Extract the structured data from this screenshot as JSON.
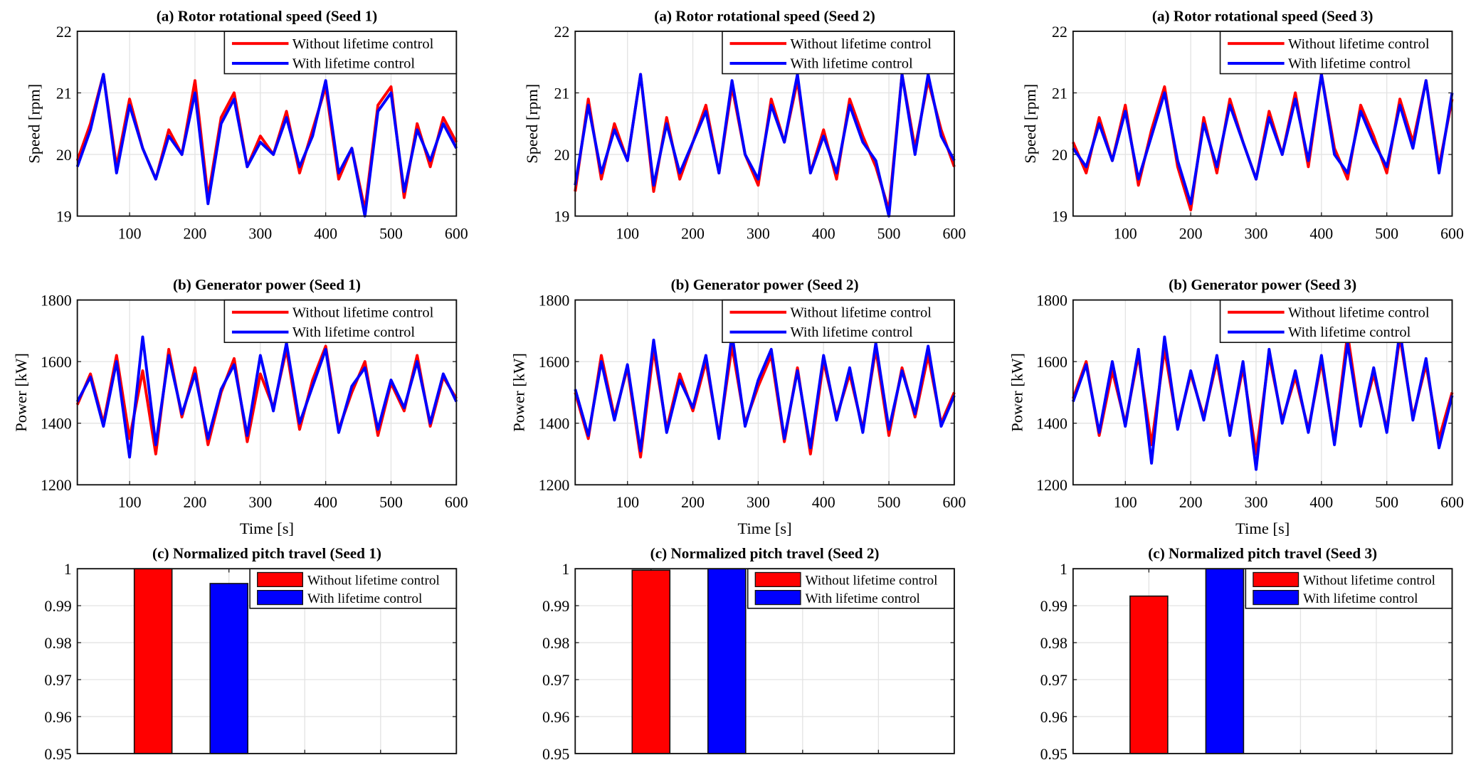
{
  "chart_data": [
    {
      "type": "line",
      "title": "(a) Rotor rotational speed (Seed 1)",
      "xlabel": "",
      "ylabel": "Speed [rpm]",
      "xlim": [
        20,
        600
      ],
      "ylim": [
        19,
        22
      ],
      "xticks": [
        "100",
        "200",
        "300",
        "400",
        "500",
        "600"
      ],
      "yticks": [
        "19",
        "20",
        "21",
        "22"
      ],
      "grid": true,
      "legend_position": "top-right",
      "x": [
        20,
        40,
        60,
        80,
        100,
        120,
        140,
        160,
        180,
        200,
        220,
        240,
        260,
        280,
        300,
        320,
        340,
        360,
        380,
        400,
        420,
        440,
        460,
        480,
        500,
        520,
        540,
        560,
        580,
        600
      ],
      "series": [
        {
          "name": "Without lifetime control",
          "color": "#ff0000",
          "values": [
            19.9,
            20.5,
            21.3,
            19.8,
            20.9,
            20.1,
            19.6,
            20.4,
            20.0,
            21.2,
            19.3,
            20.6,
            21.0,
            19.8,
            20.3,
            20.0,
            20.7,
            19.7,
            20.4,
            21.1,
            19.6,
            20.1,
            19.1,
            20.8,
            21.1,
            19.3,
            20.5,
            19.8,
            20.6,
            20.2
          ]
        },
        {
          "name": "With lifetime control",
          "color": "#0000ff",
          "values": [
            19.8,
            20.4,
            21.3,
            19.7,
            20.8,
            20.1,
            19.6,
            20.3,
            20.0,
            21.0,
            19.2,
            20.5,
            20.9,
            19.8,
            20.2,
            20.0,
            20.6,
            19.8,
            20.3,
            21.2,
            19.7,
            20.1,
            19.0,
            20.7,
            21.0,
            19.4,
            20.4,
            19.9,
            20.5,
            20.1
          ]
        }
      ]
    },
    {
      "type": "line",
      "title": "(a) Rotor rotational speed (Seed 2)",
      "xlabel": "",
      "ylabel": "Speed [rpm]",
      "xlim": [
        20,
        600
      ],
      "ylim": [
        19,
        22
      ],
      "xticks": [
        "100",
        "200",
        "300",
        "400",
        "500",
        "600"
      ],
      "yticks": [
        "19",
        "20",
        "21",
        "22"
      ],
      "grid": true,
      "legend_position": "top-right",
      "x": [
        20,
        40,
        60,
        80,
        100,
        120,
        140,
        160,
        180,
        200,
        220,
        240,
        260,
        280,
        300,
        320,
        340,
        360,
        380,
        400,
        420,
        440,
        460,
        480,
        500,
        520,
        540,
        560,
        580,
        600
      ],
      "series": [
        {
          "name": "Without lifetime control",
          "color": "#ff0000",
          "values": [
            19.4,
            20.9,
            19.6,
            20.5,
            19.9,
            21.3,
            19.4,
            20.6,
            19.6,
            20.2,
            20.8,
            19.7,
            21.1,
            20.0,
            19.5,
            20.9,
            20.2,
            21.2,
            19.7,
            20.4,
            19.6,
            20.9,
            20.3,
            19.8,
            19.1,
            21.3,
            20.1,
            21.2,
            20.4,
            19.8
          ]
        },
        {
          "name": "With lifetime control",
          "color": "#0000ff",
          "values": [
            19.5,
            20.8,
            19.7,
            20.4,
            19.9,
            21.3,
            19.5,
            20.5,
            19.7,
            20.2,
            20.7,
            19.7,
            21.2,
            20.0,
            19.6,
            20.8,
            20.2,
            21.3,
            19.7,
            20.3,
            19.7,
            20.8,
            20.2,
            19.9,
            19.0,
            21.3,
            20.0,
            21.3,
            20.3,
            19.9
          ]
        }
      ]
    },
    {
      "type": "line",
      "title": "(a) Rotor rotational speed (Seed 3)",
      "xlabel": "",
      "ylabel": "Speed [rpm]",
      "xlim": [
        20,
        600
      ],
      "ylim": [
        19,
        22
      ],
      "xticks": [
        "100",
        "200",
        "300",
        "400",
        "500",
        "600"
      ],
      "yticks": [
        "19",
        "20",
        "21",
        "22"
      ],
      "grid": true,
      "legend_position": "top-right",
      "x": [
        20,
        40,
        60,
        80,
        100,
        120,
        140,
        160,
        180,
        200,
        220,
        240,
        260,
        280,
        300,
        320,
        340,
        360,
        380,
        400,
        420,
        440,
        460,
        480,
        500,
        520,
        540,
        560,
        580,
        600
      ],
      "series": [
        {
          "name": "Without lifetime control",
          "color": "#ff0000",
          "values": [
            20.2,
            19.7,
            20.6,
            19.9,
            20.8,
            19.5,
            20.4,
            21.1,
            19.8,
            19.1,
            20.6,
            19.7,
            20.9,
            20.2,
            19.6,
            20.7,
            20.0,
            21.0,
            19.8,
            21.3,
            20.1,
            19.6,
            20.8,
            20.3,
            19.7,
            20.9,
            20.2,
            21.2,
            19.8,
            20.9
          ]
        },
        {
          "name": "With lifetime control",
          "color": "#0000ff",
          "values": [
            20.1,
            19.8,
            20.5,
            19.9,
            20.7,
            19.6,
            20.3,
            21.0,
            19.9,
            19.2,
            20.5,
            19.8,
            20.8,
            20.2,
            19.6,
            20.6,
            20.0,
            20.9,
            19.9,
            21.3,
            20.0,
            19.7,
            20.7,
            20.2,
            19.8,
            20.8,
            20.1,
            21.2,
            19.7,
            21.0
          ]
        }
      ]
    },
    {
      "type": "line",
      "title": "(b) Generator power (Seed 1)",
      "xlabel": "Time [s]",
      "ylabel": "Power [kW]",
      "xlim": [
        20,
        600
      ],
      "ylim": [
        1200,
        1800
      ],
      "xticks": [
        "100",
        "200",
        "300",
        "400",
        "500",
        "600"
      ],
      "yticks": [
        "1200",
        "1400",
        "1600",
        "1800"
      ],
      "grid": true,
      "legend_position": "top-right",
      "x": [
        20,
        40,
        60,
        80,
        100,
        120,
        140,
        160,
        180,
        200,
        220,
        240,
        260,
        280,
        300,
        320,
        340,
        360,
        380,
        400,
        420,
        440,
        460,
        480,
        500,
        520,
        540,
        560,
        580,
        600
      ],
      "series": [
        {
          "name": "Without lifetime control",
          "color": "#ff0000",
          "values": [
            1460,
            1560,
            1400,
            1620,
            1350,
            1570,
            1300,
            1640,
            1420,
            1580,
            1330,
            1500,
            1610,
            1340,
            1560,
            1450,
            1640,
            1380,
            1540,
            1650,
            1380,
            1500,
            1600,
            1360,
            1530,
            1440,
            1620,
            1390,
            1550,
            1480
          ]
        },
        {
          "name": "With lifetime control",
          "color": "#0000ff",
          "values": [
            1470,
            1550,
            1390,
            1600,
            1290,
            1680,
            1330,
            1620,
            1430,
            1560,
            1350,
            1510,
            1590,
            1360,
            1620,
            1440,
            1660,
            1400,
            1520,
            1640,
            1370,
            1520,
            1580,
            1380,
            1540,
            1450,
            1600,
            1400,
            1560,
            1470
          ]
        }
      ]
    },
    {
      "type": "line",
      "title": "(b) Generator power (Seed 2)",
      "xlabel": "Time [s]",
      "ylabel": "Power [kW]",
      "xlim": [
        20,
        600
      ],
      "ylim": [
        1200,
        1800
      ],
      "xticks": [
        "100",
        "200",
        "300",
        "400",
        "500",
        "600"
      ],
      "yticks": [
        "1200",
        "1400",
        "1600",
        "1800"
      ],
      "grid": true,
      "legend_position": "top-right",
      "x": [
        20,
        40,
        60,
        80,
        100,
        120,
        140,
        160,
        180,
        200,
        220,
        240,
        260,
        280,
        300,
        320,
        340,
        360,
        380,
        400,
        420,
        440,
        460,
        480,
        500,
        520,
        540,
        560,
        580,
        600
      ],
      "series": [
        {
          "name": "Without lifetime control",
          "color": "#ff0000",
          "values": [
            1500,
            1350,
            1620,
            1420,
            1580,
            1290,
            1640,
            1380,
            1560,
            1440,
            1600,
            1360,
            1650,
            1400,
            1520,
            1620,
            1340,
            1580,
            1300,
            1600,
            1420,
            1560,
            1380,
            1640,
            1360,
            1580,
            1420,
            1620,
            1400,
            1500
          ]
        },
        {
          "name": "With lifetime control",
          "color": "#0000ff",
          "values": [
            1510,
            1360,
            1600,
            1410,
            1590,
            1310,
            1670,
            1370,
            1540,
            1450,
            1620,
            1350,
            1690,
            1390,
            1540,
            1640,
            1350,
            1570,
            1320,
            1620,
            1410,
            1580,
            1370,
            1660,
            1380,
            1570,
            1430,
            1650,
            1390,
            1490
          ]
        }
      ]
    },
    {
      "type": "line",
      "title": "(b) Generator power (Seed 3)",
      "xlabel": "Time [s]",
      "ylabel": "Power [kW]",
      "xlim": [
        20,
        600
      ],
      "ylim": [
        1200,
        1800
      ],
      "xticks": [
        "100",
        "200",
        "300",
        "400",
        "500",
        "600"
      ],
      "yticks": [
        "1200",
        "1400",
        "1600",
        "1800"
      ],
      "grid": true,
      "legend_position": "top-right",
      "x": [
        20,
        40,
        60,
        80,
        100,
        120,
        140,
        160,
        180,
        200,
        220,
        240,
        260,
        280,
        300,
        320,
        340,
        360,
        380,
        400,
        420,
        440,
        460,
        480,
        500,
        520,
        540,
        560,
        580,
        600
      ],
      "series": [
        {
          "name": "Without lifetime control",
          "color": "#ff0000",
          "values": [
            1480,
            1600,
            1360,
            1570,
            1400,
            1620,
            1330,
            1640,
            1390,
            1560,
            1420,
            1600,
            1370,
            1580,
            1300,
            1620,
            1410,
            1550,
            1380,
            1600,
            1340,
            1690,
            1400,
            1560,
            1380,
            1680,
            1420,
            1590,
            1350,
            1500
          ]
        },
        {
          "name": "With lifetime control",
          "color": "#0000ff",
          "values": [
            1470,
            1590,
            1370,
            1600,
            1390,
            1640,
            1270,
            1680,
            1380,
            1570,
            1410,
            1620,
            1360,
            1600,
            1250,
            1640,
            1400,
            1570,
            1370,
            1620,
            1330,
            1660,
            1390,
            1580,
            1370,
            1700,
            1410,
            1610,
            1320,
            1490
          ]
        }
      ]
    },
    {
      "type": "bar",
      "title": "(c) Normalized pitch travel (Seed 1)",
      "ylim": [
        0.95,
        1
      ],
      "yticks": [
        "0.95",
        "0.96",
        "0.97",
        "0.98",
        "0.99",
        "1"
      ],
      "grid": true,
      "legend_position": "top-right",
      "series": [
        {
          "name": "Without lifetime control",
          "color": "#ff0000",
          "value": 1.0
        },
        {
          "name": "With lifetime control",
          "color": "#0000ff",
          "value": 0.996
        }
      ]
    },
    {
      "type": "bar",
      "title": "(c) Normalized pitch travel (Seed 2)",
      "ylim": [
        0.95,
        1
      ],
      "yticks": [
        "0.95",
        "0.96",
        "0.97",
        "0.98",
        "0.99",
        "1"
      ],
      "grid": true,
      "legend_position": "top-right",
      "series": [
        {
          "name": "Without lifetime control",
          "color": "#ff0000",
          "value": 0.9996
        },
        {
          "name": "With lifetime control",
          "color": "#0000ff",
          "value": 1.0
        }
      ]
    },
    {
      "type": "bar",
      "title": "(c) Normalized pitch travel (Seed 3)",
      "ylim": [
        0.95,
        1
      ],
      "yticks": [
        "0.95",
        "0.96",
        "0.97",
        "0.98",
        "0.99",
        "1"
      ],
      "grid": true,
      "legend_position": "top-right",
      "series": [
        {
          "name": "Without lifetime control",
          "color": "#ff0000",
          "value": 0.9926
        },
        {
          "name": "With lifetime control",
          "color": "#0000ff",
          "value": 1.0
        }
      ]
    }
  ]
}
